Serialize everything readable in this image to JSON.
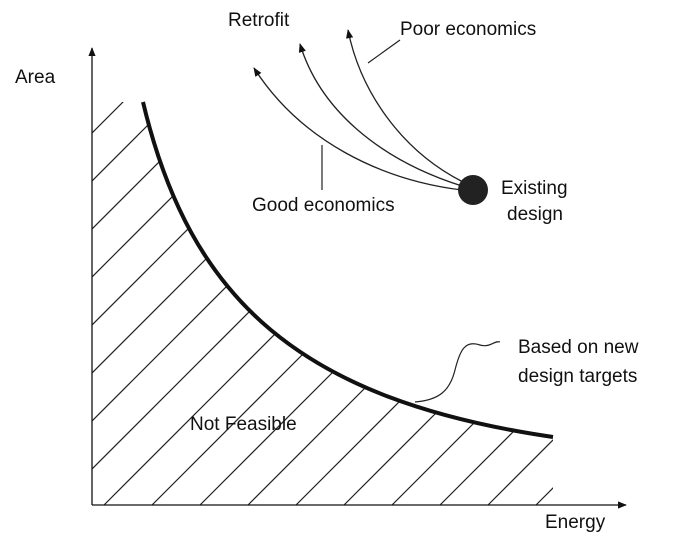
{
  "axes": {
    "y_label": "Area",
    "x_label": "Energy"
  },
  "annotations": {
    "retrofit": "Retrofit",
    "poor_economics": "Poor economics",
    "good_economics": "Good economics",
    "existing_design": [
      "Existing",
      "design"
    ],
    "design_targets": [
      "Based on new",
      "design targets"
    ],
    "not_feasible": "Not Feasible"
  }
}
